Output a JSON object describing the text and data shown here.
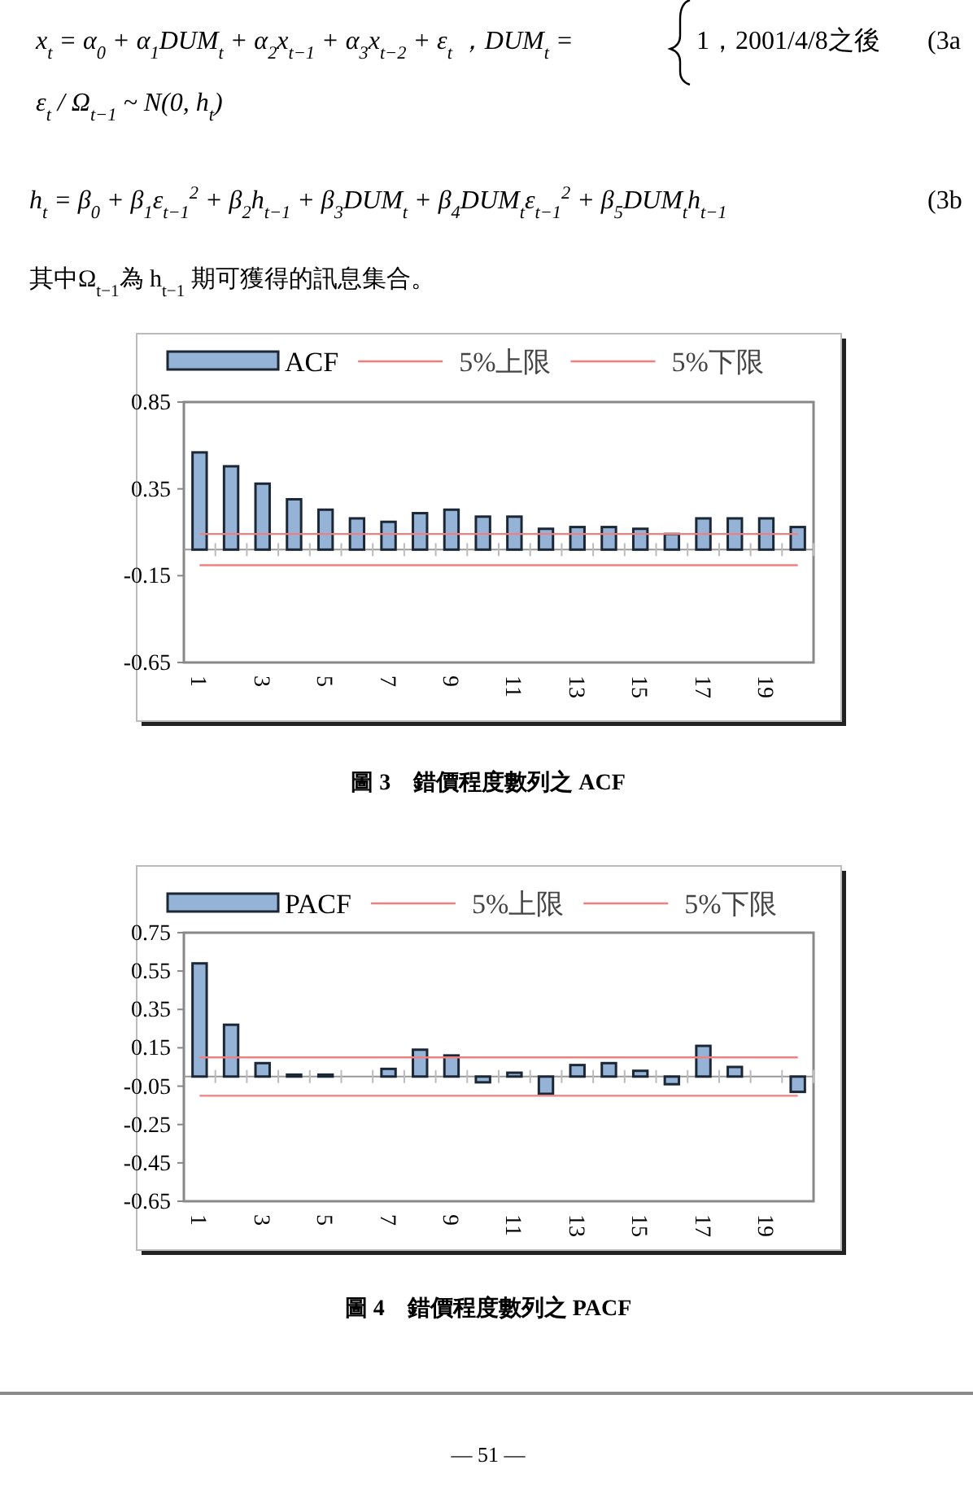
{
  "chart_data": [
    {
      "type": "bar",
      "categories": [
        "1",
        null,
        "3",
        null,
        "5",
        null,
        "7",
        null,
        "9",
        null,
        "11",
        null,
        "13",
        null,
        "15",
        null,
        "17",
        null,
        "19",
        null
      ],
      "series": [
        {
          "name": "ACF",
          "color": "#95b3d7",
          "values": [
            0.56,
            0.48,
            0.38,
            0.29,
            0.23,
            0.18,
            0.16,
            0.21,
            0.23,
            0.19,
            0.19,
            0.12,
            0.13,
            0.13,
            0.12,
            0.09,
            0.18,
            0.18,
            0.18,
            0.13
          ]
        },
        {
          "name": "5%上限",
          "type": "line",
          "color": "#f08080",
          "values": [
            0.09,
            0.09,
            0.09,
            0.09,
            0.09,
            0.09,
            0.09,
            0.09,
            0.09,
            0.09,
            0.09,
            0.09,
            0.09,
            0.09,
            0.09,
            0.09,
            0.09,
            0.09,
            0.09,
            0.09
          ]
        },
        {
          "name": "5%下限",
          "type": "line",
          "color": "#f08080",
          "values": [
            -0.09,
            -0.09,
            -0.09,
            -0.09,
            -0.09,
            -0.09,
            -0.09,
            -0.09,
            -0.09,
            -0.09,
            -0.09,
            -0.09,
            -0.09,
            -0.09,
            -0.09,
            -0.09,
            -0.09,
            -0.09,
            -0.09,
            -0.09
          ]
        }
      ],
      "ylim": [
        -0.65,
        0.85
      ],
      "yticks": [
        0.85,
        0.35,
        -0.15,
        -0.65
      ],
      "legend": "top",
      "grid": false,
      "annotations": [
        "x$_{t}$ = α$_{0}$ + α$_{1}$DUM$_{t}$ + α$_{2}$x$_{t−1}$ + α$_{3}$x$_{t−2}$ + ε$_{t}$ ，DUM$_{t}$ =",
        "1，2001/4/8之後",
        "(3a",
        "ε$_{t}$ / Ω$_{t−1}$ ~ N(0, h$_{t}$)",
        "h$_{t}$ = β$_{0}$ + β$_{1}$ε$_{t−1}$$^{2}$ + β$_{2}$h$_{t−1}$ + β$_{3}$DUM$_{t}$ + β$_{4}$DUM$_{t}$ε$_{t−1}$$^{2}$ + β$_{5}$DUM$_{t}$h$_{t−1}$",
        "(3b",
        "其中Ω$_{t−1}$為 h$_{t−1}$ 期可獲得的訊息集合。",
        "圖 3　錯價程度數列之 ACF"
      ]
    },
    {
      "type": "bar",
      "categories": [
        "1",
        null,
        "3",
        null,
        "5",
        null,
        "7",
        null,
        "9",
        null,
        "11",
        null,
        "13",
        null,
        "15",
        null,
        "17",
        null,
        "19",
        null
      ],
      "series": [
        {
          "name": "PACF",
          "color": "#95b3d7",
          "values": [
            0.59,
            0.27,
            0.07,
            0.01,
            0.01,
            0.0,
            0.04,
            0.14,
            0.11,
            -0.03,
            0.02,
            -0.09,
            0.06,
            0.07,
            0.03,
            -0.04,
            0.16,
            0.05,
            0.0,
            -0.08
          ]
        },
        {
          "name": "5%上限",
          "type": "line",
          "color": "#f08080",
          "values": [
            0.1,
            0.1,
            0.1,
            0.1,
            0.1,
            0.1,
            0.1,
            0.1,
            0.1,
            0.1,
            0.1,
            0.1,
            0.1,
            0.1,
            0.1,
            0.1,
            0.1,
            0.1,
            0.1,
            0.1
          ]
        },
        {
          "name": "5%下限",
          "type": "line",
          "color": "#f08080",
          "values": [
            -0.1,
            -0.1,
            -0.1,
            -0.1,
            -0.1,
            -0.1,
            -0.1,
            -0.1,
            -0.1,
            -0.1,
            -0.1,
            -0.1,
            -0.1,
            -0.1,
            -0.1,
            -0.1,
            -0.1,
            -0.1,
            -0.1,
            -0.1
          ]
        }
      ],
      "ylim": [
        -0.65,
        0.75
      ],
      "yticks": [
        0.75,
        0.55,
        0.35,
        0.15,
        -0.05,
        -0.25,
        -0.45,
        -0.65
      ],
      "legend": "top",
      "grid": false,
      "annotations": [
        "圖 4　錯價程度數列之 PACF",
        "— 51 —"
      ]
    }
  ]
}
